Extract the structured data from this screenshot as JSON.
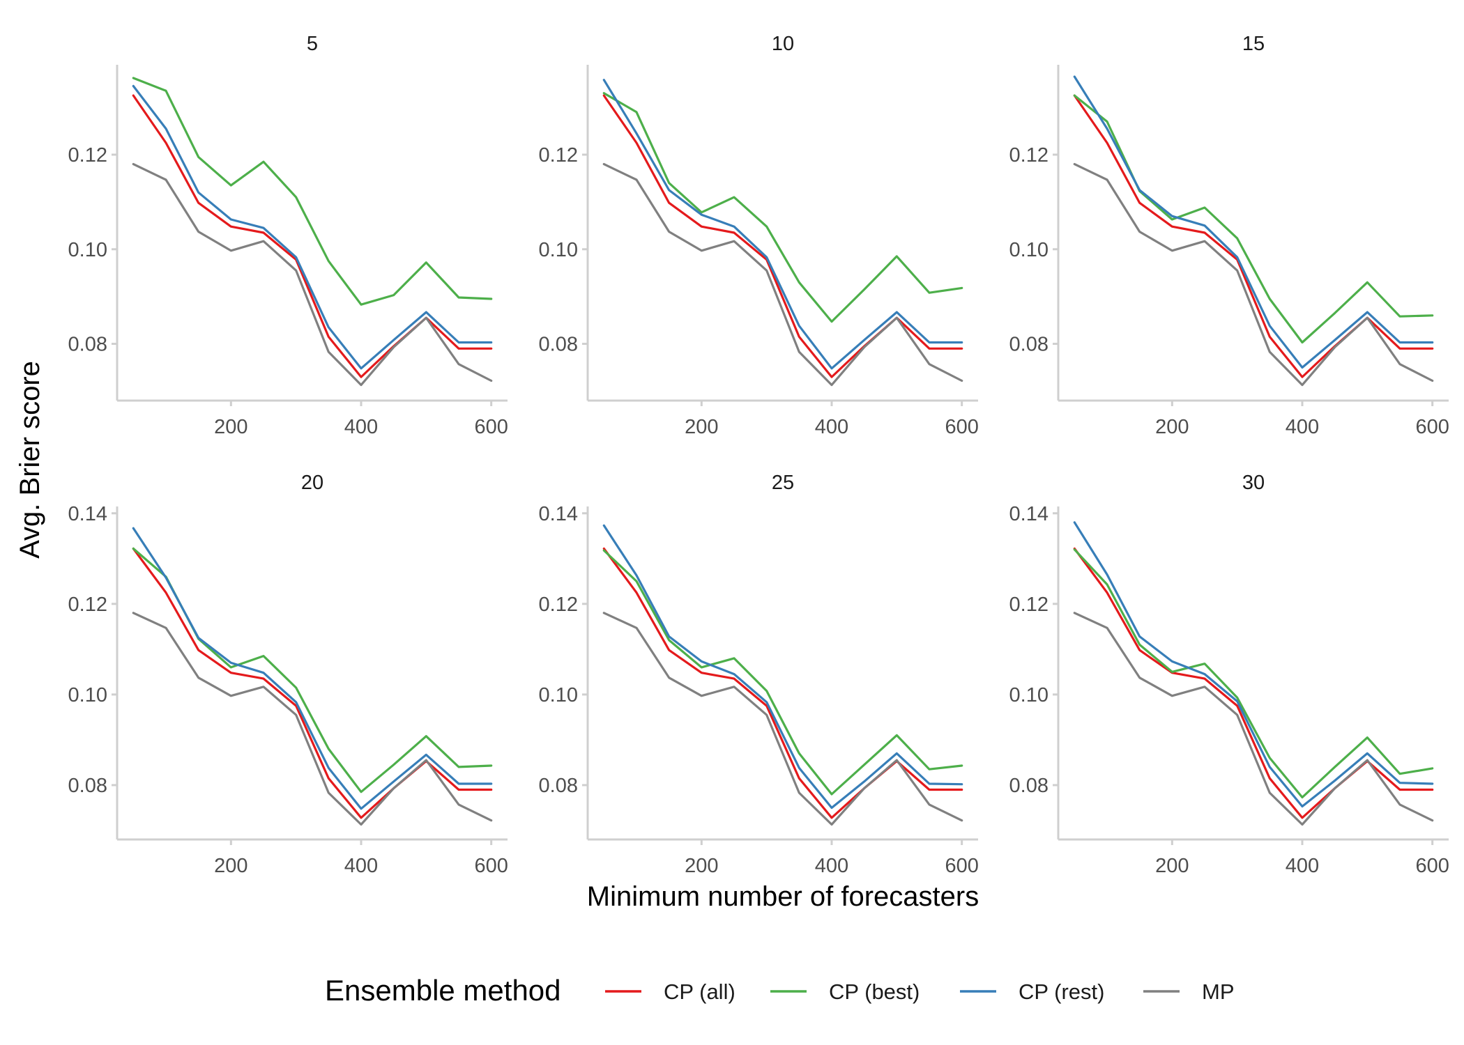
{
  "chart_data": {
    "type": "line",
    "xlabel": "Minimum number of forecasters",
    "ylabel": "Avg. Brier score",
    "xlim": [
      25,
      625
    ],
    "x_ticks": [
      200,
      400,
      600
    ],
    "x": [
      50,
      100,
      150,
      200,
      250,
      300,
      350,
      400,
      450,
      500,
      550,
      600
    ],
    "grid": false,
    "legend": {
      "title": "Ensemble method",
      "position": "bottom",
      "entries": [
        "CP (all)",
        "CP (best)",
        "CP (rest)",
        "MP"
      ]
    },
    "colors": {
      "CP (all)": "#e41a1c",
      "CP (best)": "#4daf4a",
      "CP (rest)": "#377eb8",
      "MP": "#808080"
    },
    "panels": [
      {
        "label": "5",
        "ylim": [
          0.068,
          0.139
        ],
        "y_ticks": [
          0.08,
          0.1,
          0.12
        ],
        "y_tick_labels": [
          "0.08",
          "0.10",
          "0.12"
        ],
        "series": [
          {
            "name": "CP (all)",
            "values": [
              0.1325,
              0.1225,
              0.1098,
              0.1048,
              0.1035,
              0.0978,
              0.0815,
              0.073,
              0.0795,
              0.0855,
              0.079,
              0.079
            ]
          },
          {
            "name": "CP (best)",
            "values": [
              0.1362,
              0.1335,
              0.1195,
              0.1135,
              0.1185,
              0.111,
              0.0975,
              0.0883,
              0.0903,
              0.0972,
              0.0898,
              0.0895
            ]
          },
          {
            "name": "CP (rest)",
            "values": [
              0.1345,
              0.1255,
              0.112,
              0.1063,
              0.1045,
              0.0983,
              0.0835,
              0.0748,
              0.0808,
              0.0867,
              0.0803,
              0.0803
            ]
          },
          {
            "name": "MP",
            "values": [
              0.118,
              0.1147,
              0.1037,
              0.0997,
              0.1017,
              0.0955,
              0.0783,
              0.0713,
              0.0793,
              0.0855,
              0.0757,
              0.0722
            ]
          }
        ]
      },
      {
        "label": "10",
        "ylim": [
          0.068,
          0.139
        ],
        "y_ticks": [
          0.08,
          0.1,
          0.12
        ],
        "y_tick_labels": [
          "0.08",
          "0.10",
          "0.12"
        ],
        "series": [
          {
            "name": "CP (all)",
            "values": [
              0.1325,
              0.1225,
              0.1098,
              0.1048,
              0.1035,
              0.0978,
              0.0815,
              0.073,
              0.0795,
              0.0855,
              0.079,
              0.079
            ]
          },
          {
            "name": "CP (best)",
            "values": [
              0.133,
              0.129,
              0.114,
              0.1078,
              0.111,
              0.1048,
              0.093,
              0.0847,
              0.0915,
              0.0985,
              0.0908,
              0.0918
            ]
          },
          {
            "name": "CP (rest)",
            "values": [
              0.1358,
              0.1245,
              0.1125,
              0.1073,
              0.1048,
              0.0983,
              0.0838,
              0.0748,
              0.0808,
              0.0867,
              0.0803,
              0.0803
            ]
          },
          {
            "name": "MP",
            "values": [
              0.118,
              0.1147,
              0.1037,
              0.0997,
              0.1017,
              0.0955,
              0.0783,
              0.0713,
              0.0793,
              0.0855,
              0.0757,
              0.0722
            ]
          }
        ]
      },
      {
        "label": "15",
        "ylim": [
          0.068,
          0.139
        ],
        "y_ticks": [
          0.08,
          0.1,
          0.12
        ],
        "y_tick_labels": [
          "0.08",
          "0.10",
          "0.12"
        ],
        "series": [
          {
            "name": "CP (all)",
            "values": [
              0.1325,
              0.1225,
              0.1098,
              0.1048,
              0.1035,
              0.0978,
              0.0815,
              0.073,
              0.0795,
              0.0855,
              0.079,
              0.079
            ]
          },
          {
            "name": "CP (best)",
            "values": [
              0.1325,
              0.127,
              0.1123,
              0.1063,
              0.1088,
              0.1023,
              0.0895,
              0.0803,
              0.0865,
              0.093,
              0.0858,
              0.086
            ]
          },
          {
            "name": "CP (rest)",
            "values": [
              0.1365,
              0.1255,
              0.1125,
              0.107,
              0.105,
              0.0983,
              0.0838,
              0.075,
              0.0808,
              0.0867,
              0.0803,
              0.0803
            ]
          },
          {
            "name": "MP",
            "values": [
              0.118,
              0.1147,
              0.1037,
              0.0997,
              0.1017,
              0.0955,
              0.0783,
              0.0713,
              0.0793,
              0.0855,
              0.0757,
              0.0722
            ]
          }
        ]
      },
      {
        "label": "20",
        "ylim": [
          0.068,
          0.1415
        ],
        "y_ticks": [
          0.08,
          0.1,
          0.12,
          0.14
        ],
        "y_tick_labels": [
          "0.08",
          "0.10",
          "0.12",
          "0.14"
        ],
        "series": [
          {
            "name": "CP (all)",
            "values": [
              0.1322,
              0.1225,
              0.1098,
              0.1048,
              0.1035,
              0.0975,
              0.0815,
              0.0728,
              0.0793,
              0.0853,
              0.079,
              0.079
            ]
          },
          {
            "name": "CP (best)",
            "values": [
              0.1322,
              0.126,
              0.1123,
              0.106,
              0.1085,
              0.1015,
              0.088,
              0.0785,
              0.0845,
              0.0908,
              0.084,
              0.0843
            ]
          },
          {
            "name": "CP (rest)",
            "values": [
              0.1367,
              0.1258,
              0.1125,
              0.107,
              0.1048,
              0.0983,
              0.0838,
              0.0748,
              0.0808,
              0.0867,
              0.0803,
              0.0803
            ]
          },
          {
            "name": "MP",
            "values": [
              0.118,
              0.1147,
              0.1037,
              0.0997,
              0.1017,
              0.0955,
              0.0783,
              0.0713,
              0.0793,
              0.0855,
              0.0757,
              0.0722
            ]
          }
        ]
      },
      {
        "label": "25",
        "ylim": [
          0.068,
          0.1415
        ],
        "y_ticks": [
          0.08,
          0.1,
          0.12,
          0.14
        ],
        "y_tick_labels": [
          "0.08",
          "0.10",
          "0.12",
          "0.14"
        ],
        "series": [
          {
            "name": "CP (all)",
            "values": [
              0.1322,
              0.1225,
              0.1098,
              0.1048,
              0.1035,
              0.0975,
              0.0815,
              0.0728,
              0.0793,
              0.0853,
              0.079,
              0.079
            ]
          },
          {
            "name": "CP (best)",
            "values": [
              0.1318,
              0.125,
              0.112,
              0.106,
              0.108,
              0.1008,
              0.087,
              0.078,
              0.0845,
              0.091,
              0.0835,
              0.0843
            ]
          },
          {
            "name": "CP (rest)",
            "values": [
              0.1373,
              0.1263,
              0.1128,
              0.1073,
              0.1045,
              0.0983,
              0.0838,
              0.075,
              0.0808,
              0.087,
              0.0803,
              0.0802
            ]
          },
          {
            "name": "MP",
            "values": [
              0.118,
              0.1147,
              0.1037,
              0.0997,
              0.1017,
              0.0955,
              0.0783,
              0.0713,
              0.0793,
              0.0855,
              0.0757,
              0.0722
            ]
          }
        ]
      },
      {
        "label": "30",
        "ylim": [
          0.068,
          0.1415
        ],
        "y_ticks": [
          0.08,
          0.1,
          0.12,
          0.14
        ],
        "y_tick_labels": [
          "0.08",
          "0.10",
          "0.12",
          "0.14"
        ],
        "series": [
          {
            "name": "CP (all)",
            "values": [
              0.1322,
              0.1225,
              0.1098,
              0.1048,
              0.1035,
              0.0975,
              0.0815,
              0.0728,
              0.0793,
              0.0853,
              0.079,
              0.079
            ]
          },
          {
            "name": "CP (best)",
            "values": [
              0.132,
              0.1243,
              0.111,
              0.105,
              0.1068,
              0.0993,
              0.086,
              0.0773,
              0.084,
              0.0905,
              0.0825,
              0.0837
            ]
          },
          {
            "name": "CP (rest)",
            "values": [
              0.138,
              0.1265,
              0.1128,
              0.1073,
              0.1045,
              0.0985,
              0.084,
              0.0753,
              0.081,
              0.087,
              0.0805,
              0.0803
            ]
          },
          {
            "name": "MP",
            "values": [
              0.118,
              0.1147,
              0.1037,
              0.0997,
              0.1017,
              0.0955,
              0.0783,
              0.0713,
              0.0793,
              0.0855,
              0.0757,
              0.0722
            ]
          }
        ]
      }
    ]
  }
}
